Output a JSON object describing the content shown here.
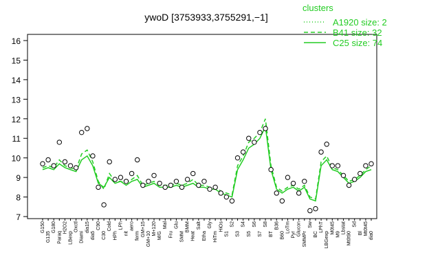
{
  "chart_data": {
    "type": "line",
    "title": "ywoD [3753933,3755291,−1]",
    "legend_title": "clusters",
    "ylim": [
      7,
      16
    ],
    "yticks": [
      7,
      8,
      9,
      10,
      11,
      12,
      13,
      14,
      15,
      16
    ],
    "categories": [
      "G150",
      "G135",
      "G180",
      "Paraq",
      "H2O2",
      "LBexp",
      "Oxctl",
      "Diami",
      "dia15",
      "dia5",
      "C90",
      "C30",
      "Cold",
      "HPh",
      "LPh",
      "nit",
      "aero",
      "ferm",
      "GM+15",
      "GM+10",
      "M+120",
      "M/G",
      "Mal",
      "Fru",
      "Glu",
      "SMM",
      "BMM",
      "Heat",
      "Salt",
      "Etha",
      "Gly",
      "HiTm",
      "HiOs",
      "S1",
      "S2",
      "S3",
      "S4",
      "S5",
      "S6",
      "S7",
      "S8",
      "BT",
      "B36",
      "B60",
      "LoTm",
      "Pyr",
      "Glucon",
      "SMMPr",
      "Sw",
      "BC",
      "LPhT",
      "LBGexp",
      "M0t45",
      "M9",
      "Lbstat",
      "Mt0t90",
      "Sd",
      "Bl",
      "Mt0t45",
      "dia0"
    ],
    "points": {
      "color": "#000000",
      "values": [
        9.7,
        9.9,
        9.6,
        10.8,
        9.8,
        9.6,
        9.5,
        11.3,
        11.5,
        10.1,
        8.5,
        7.6,
        9.8,
        8.9,
        9.0,
        8.8,
        9.2,
        9.9,
        8.6,
        8.8,
        9.1,
        8.7,
        8.5,
        8.6,
        8.8,
        8.5,
        8.9,
        9.2,
        8.6,
        8.8,
        8.4,
        8.5,
        8.2,
        8.0,
        7.8,
        10.0,
        10.3,
        11.0,
        10.8,
        11.3,
        11.5,
        9.4,
        8.2,
        7.8,
        9.0,
        8.7,
        8.2,
        8.8,
        7.3,
        7.4,
        10.3,
        10.7,
        9.6,
        9.6,
        9.1,
        8.6,
        8.9,
        9.2,
        9.6,
        9.7
      ]
    },
    "series": [
      {
        "name": "A1920 size: 2",
        "color": "#22cc22",
        "dash": "dotted",
        "values": [
          null,
          null,
          null,
          null,
          null,
          null,
          null,
          null,
          null,
          null,
          null,
          null,
          null,
          null,
          null,
          null,
          null,
          null,
          null,
          null,
          null,
          null,
          null,
          null,
          null,
          null,
          null,
          null,
          null,
          null,
          null,
          null,
          null,
          null,
          null,
          null,
          null,
          null,
          null,
          null,
          null,
          null,
          null,
          null,
          null,
          null,
          null,
          null,
          null,
          null,
          null,
          null,
          null,
          null,
          null,
          null,
          null,
          null,
          null,
          null
        ]
      },
      {
        "name": "B41 size: 32",
        "color": "#22cc22",
        "dash": "dashed",
        "values": [
          9.5,
          9.6,
          9.5,
          9.9,
          9.6,
          9.5,
          9.4,
          10.2,
          10.4,
          9.8,
          8.8,
          8.4,
          9.2,
          8.8,
          8.8,
          8.7,
          8.9,
          9.1,
          8.6,
          8.7,
          8.8,
          8.6,
          8.6,
          8.6,
          8.7,
          8.6,
          8.7,
          8.9,
          8.6,
          8.6,
          8.5,
          8.5,
          8.3,
          8.2,
          8.1,
          9.6,
          10.1,
          10.8,
          11.0,
          11.3,
          12.0,
          9.6,
          8.5,
          8.3,
          8.5,
          8.6,
          8.4,
          8.6,
          8.0,
          7.9,
          9.8,
          10.1,
          9.5,
          9.4,
          9.1,
          8.8,
          8.9,
          9.1,
          9.4,
          9.6
        ]
      },
      {
        "name": "C25 size: 74",
        "color": "#22cc22",
        "dash": "solid",
        "values": [
          9.4,
          9.5,
          9.4,
          9.7,
          9.5,
          9.4,
          9.3,
          9.9,
          10.1,
          9.6,
          8.7,
          8.5,
          9.0,
          8.7,
          8.8,
          8.6,
          8.8,
          8.9,
          8.5,
          8.6,
          8.7,
          8.5,
          8.5,
          8.5,
          8.6,
          8.5,
          8.6,
          8.7,
          8.5,
          8.5,
          8.4,
          8.4,
          8.2,
          8.1,
          8.0,
          9.4,
          9.9,
          10.5,
          10.7,
          11.0,
          11.6,
          9.4,
          8.4,
          8.2,
          8.4,
          8.5,
          8.3,
          8.5,
          7.9,
          7.8,
          9.6,
          9.9,
          9.4,
          9.3,
          9.0,
          8.7,
          8.8,
          9.0,
          9.3,
          9.4
        ]
      }
    ]
  }
}
